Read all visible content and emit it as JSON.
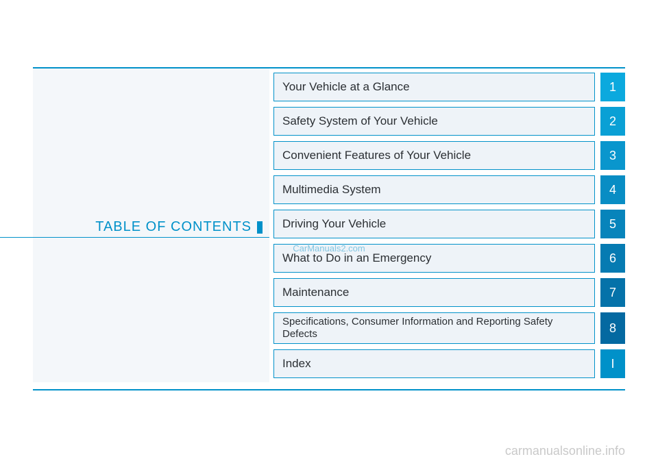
{
  "title": "TABLE OF CONTENTS",
  "watermark_center": "CarManuals2.com",
  "watermark_footer": "carmanualsonline.info",
  "colors": {
    "accent": "#0091c9",
    "item_bg": "#eef3f8",
    "item_border": "#0091c9",
    "left_bg": "#f4f7fa",
    "text": "#2b2f33",
    "num_text": "#ffffff",
    "footer_text": "#c9c9c9",
    "num_shades": [
      "#0ba9de",
      "#0aa0d5",
      "#0996cd",
      "#088dc4",
      "#0784bb",
      "#067bb2",
      "#0572a9",
      "#0469a1",
      "#0091c9"
    ]
  },
  "toc": [
    {
      "label": "Your Vehicle at a Glance",
      "num": "1",
      "color": "#0ba9de"
    },
    {
      "label": "Safety System of Your Vehicle",
      "num": "2",
      "color": "#0aa0d5"
    },
    {
      "label": "Convenient Features of Your Vehicle",
      "num": "3",
      "color": "#0996cd"
    },
    {
      "label": "Multimedia System",
      "num": "4",
      "color": "#088dc4"
    },
    {
      "label": "Driving Your Vehicle",
      "num": "5",
      "color": "#0784bb"
    },
    {
      "label": "What to Do in an Emergency",
      "num": "6",
      "color": "#067bb2"
    },
    {
      "label": "Maintenance",
      "num": "7",
      "color": "#0572a9"
    },
    {
      "label": "Specifications, Consumer Information and Reporting Safety Defects",
      "num": "8",
      "color": "#0469a1",
      "multiline": true
    },
    {
      "label": "Index",
      "num": "I",
      "color": "#0091c9"
    }
  ]
}
